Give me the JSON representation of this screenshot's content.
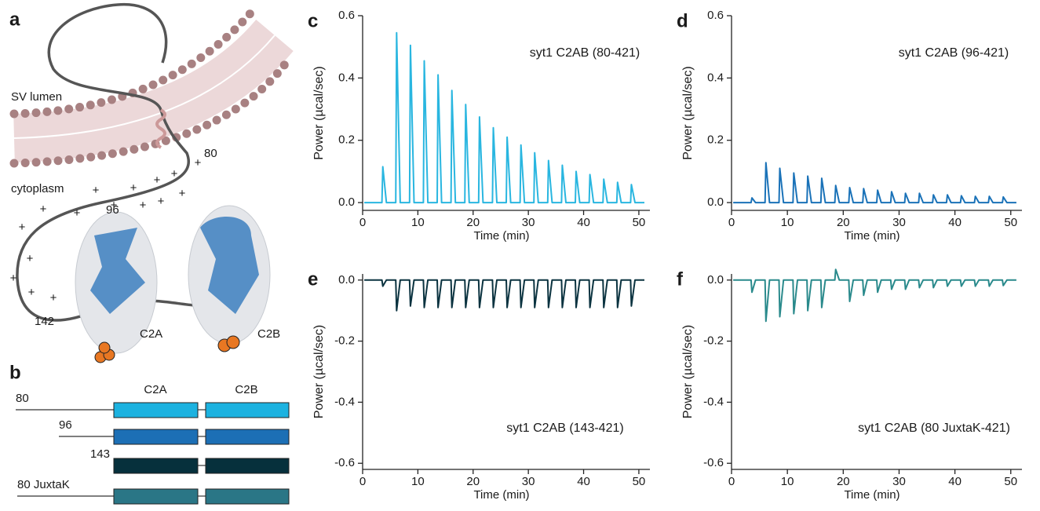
{
  "panel_a": {
    "letter": "a",
    "lumen": "SV lumen",
    "cytoplasm": "cytoplasm",
    "res80": "80",
    "res96": "96",
    "res142": "142",
    "c2a": "C2A",
    "c2b": "C2B",
    "plus": "+"
  },
  "panel_b": {
    "letter": "b",
    "c2a": "C2A",
    "c2b": "C2B",
    "constructs": [
      {
        "label": "80",
        "color": "#1cb2e0"
      },
      {
        "label": "96",
        "color": "#1c6fb5"
      },
      {
        "label": "143",
        "color": "#06303c"
      },
      {
        "label": "80 JuxtaK",
        "color": "#2a7686"
      }
    ]
  },
  "chart_data": [
    {
      "type": "line",
      "panel": "c",
      "annotation": "syt1 C2AB (80-421)",
      "x_label": "Time (min)",
      "y_label": "Power (µcal/sec)",
      "color": "#29b6e0",
      "x": [
        0.3,
        3.5,
        3.65,
        4.3,
        6,
        6.15,
        6.8,
        8.5,
        8.65,
        9.3,
        11,
        11.15,
        11.8,
        13.5,
        13.65,
        14.3,
        16,
        16.15,
        16.8,
        18.5,
        18.65,
        19.3,
        21,
        21.15,
        21.8,
        23.5,
        23.65,
        24.3,
        26,
        26.15,
        26.8,
        28.5,
        28.65,
        29.3,
        31,
        31.15,
        31.8,
        33.5,
        33.65,
        34.3,
        36,
        36.15,
        36.8,
        38.5,
        38.65,
        39.3,
        41,
        41.15,
        41.8,
        43.5,
        43.65,
        44.3,
        46,
        46.15,
        46.8,
        48.5,
        48.65,
        49.3,
        51
      ],
      "values": [
        0,
        0,
        0.115,
        0,
        0,
        0.545,
        0,
        0,
        0.505,
        0,
        0,
        0.455,
        0,
        0,
        0.41,
        0,
        0,
        0.36,
        0,
        0,
        0.315,
        0,
        0,
        0.275,
        0,
        0,
        0.24,
        0,
        0,
        0.21,
        0,
        0,
        0.185,
        0,
        0,
        0.16,
        0,
        0,
        0.135,
        0,
        0,
        0.12,
        0,
        0,
        0.1,
        0,
        0,
        0.09,
        0,
        0,
        0.075,
        0,
        0,
        0.065,
        0,
        0,
        0.058,
        0,
        0
      ],
      "xlim": [
        0,
        52
      ],
      "xticks": [
        0,
        10,
        20,
        30,
        40,
        50
      ],
      "ylim": [
        -0.025,
        0.6
      ],
      "yticks": [
        {
          "value": 0,
          "label": "0.0"
        },
        0.2,
        0.4,
        0.6
      ]
    },
    {
      "type": "line",
      "panel": "d",
      "annotation": "syt1 C2AB (96-421)",
      "x_label": "Time (min)",
      "y_label": "Power (µcal/sec)",
      "color": "#1a72b8",
      "x": [
        0.3,
        3.5,
        3.65,
        4.3,
        6,
        6.15,
        6.8,
        8.5,
        8.65,
        9.3,
        11,
        11.15,
        11.8,
        13.5,
        13.65,
        14.3,
        16,
        16.15,
        16.8,
        18.5,
        18.65,
        19.3,
        21,
        21.15,
        21.8,
        23.5,
        23.65,
        24.3,
        26,
        26.15,
        26.8,
        28.5,
        28.65,
        29.3,
        31,
        31.15,
        31.8,
        33.5,
        33.65,
        34.3,
        36,
        36.15,
        36.8,
        38.5,
        38.65,
        39.3,
        41,
        41.15,
        41.8,
        43.5,
        43.65,
        44.3,
        46,
        46.15,
        46.8,
        48.5,
        48.65,
        49.3,
        51
      ],
      "values": [
        0,
        0,
        0.015,
        0,
        0,
        0.128,
        0,
        0,
        0.11,
        0,
        0,
        0.095,
        0,
        0,
        0.085,
        0,
        0,
        0.078,
        0,
        0,
        0.055,
        0,
        0,
        0.048,
        0,
        0,
        0.045,
        0,
        0,
        0.04,
        0,
        0,
        0.035,
        0,
        0,
        0.03,
        0,
        0,
        0.03,
        0,
        0,
        0.025,
        0,
        0,
        0.025,
        0,
        0,
        0.022,
        0,
        0,
        0.02,
        0,
        0,
        0.02,
        0,
        0,
        0.018,
        0,
        0
      ],
      "xlim": [
        0,
        52
      ],
      "xticks": [
        0,
        10,
        20,
        30,
        40,
        50
      ],
      "ylim": [
        -0.025,
        0.6
      ],
      "yticks": [
        {
          "value": 0,
          "label": "0.0"
        },
        0.2,
        0.4,
        0.6
      ]
    },
    {
      "type": "line",
      "panel": "e",
      "annotation": "syt1 C2AB (143-421)",
      "x_label": "Time (min)",
      "y_label": "Power (µcal/sec)",
      "color": "#0b3340",
      "x": [
        0.3,
        3.5,
        3.65,
        4.3,
        6,
        6.15,
        6.8,
        8.5,
        8.65,
        9.3,
        11,
        11.15,
        11.8,
        13.5,
        13.65,
        14.3,
        16,
        16.15,
        16.8,
        18.5,
        18.65,
        19.3,
        21,
        21.15,
        21.8,
        23.5,
        23.65,
        24.3,
        26,
        26.15,
        26.8,
        28.5,
        28.65,
        29.3,
        31,
        31.15,
        31.8,
        33.5,
        33.65,
        34.3,
        36,
        36.15,
        36.8,
        38.5,
        38.65,
        39.3,
        41,
        41.15,
        41.8,
        43.5,
        43.65,
        44.3,
        46,
        46.15,
        46.8,
        48.5,
        48.65,
        49.3,
        51
      ],
      "values": [
        0,
        0,
        -0.02,
        0,
        0,
        -0.1,
        0,
        0,
        -0.085,
        0,
        0,
        -0.09,
        0,
        0,
        -0.09,
        0,
        0,
        -0.09,
        0,
        0,
        -0.09,
        0,
        0,
        -0.09,
        0,
        0,
        -0.09,
        0,
        0,
        -0.09,
        0,
        0,
        -0.09,
        0,
        0,
        -0.09,
        0,
        0,
        -0.09,
        0,
        0,
        -0.09,
        0,
        0,
        -0.09,
        0,
        0,
        -0.09,
        0,
        0,
        -0.09,
        0,
        0,
        -0.09,
        0,
        0,
        -0.085,
        0,
        0
      ],
      "xlim": [
        0,
        52
      ],
      "xticks": [
        0,
        10,
        20,
        30,
        40,
        50
      ],
      "ylim": [
        -0.62,
        0.02
      ],
      "yticks": [
        -0.6,
        -0.4,
        -0.2,
        {
          "value": 0,
          "label": "0.0"
        }
      ]
    },
    {
      "type": "line",
      "panel": "f",
      "annotation": "syt1 C2AB (80 JuxtaK-421)",
      "x_label": "Time (min)",
      "y_label": "Power (µcal/sec)",
      "color": "#2a8a8c",
      "x": [
        0.3,
        3.5,
        3.65,
        4.3,
        6,
        6.15,
        6.8,
        8.5,
        8.65,
        9.3,
        11,
        11.15,
        11.8,
        13.5,
        13.65,
        14.3,
        16,
        16.15,
        16.8,
        18.5,
        18.65,
        19.3,
        21,
        21.15,
        21.8,
        23.5,
        23.65,
        24.3,
        26,
        26.15,
        26.8,
        28.5,
        28.65,
        29.3,
        31,
        31.15,
        31.8,
        33.5,
        33.65,
        34.3,
        36,
        36.15,
        36.8,
        38.5,
        38.65,
        39.3,
        41,
        41.15,
        41.8,
        43.5,
        43.65,
        44.3,
        46,
        46.15,
        46.8,
        48.5,
        48.65,
        49.3,
        51
      ],
      "values": [
        0,
        0,
        -0.04,
        0,
        0,
        -0.135,
        0,
        0,
        -0.12,
        0,
        0,
        -0.11,
        0,
        0,
        -0.1,
        0,
        0,
        -0.09,
        0,
        0,
        0.035,
        0,
        0,
        -0.07,
        0,
        0,
        -0.05,
        0,
        0,
        -0.04,
        0,
        0,
        -0.03,
        0,
        0,
        -0.03,
        0,
        0,
        -0.025,
        0,
        0,
        -0.025,
        0,
        0,
        -0.02,
        0,
        0,
        -0.02,
        0,
        0,
        -0.02,
        0,
        0,
        -0.02,
        0,
        0,
        -0.018,
        0,
        0
      ],
      "xlim": [
        0,
        52
      ],
      "xticks": [
        0,
        10,
        20,
        30,
        40,
        50
      ],
      "ylim": [
        -0.62,
        0.02
      ],
      "yticks": [
        -0.6,
        -0.4,
        -0.2,
        {
          "value": 0,
          "label": "0.0"
        }
      ]
    }
  ]
}
